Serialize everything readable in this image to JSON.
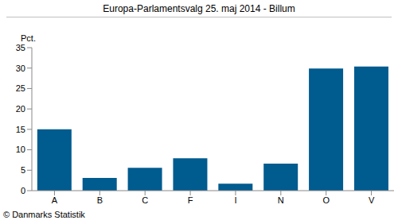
{
  "chart_data": {
    "type": "bar",
    "title": "Europa-Parlamentsvalg 25. maj 2014 - Billum",
    "y_label": "Pct.",
    "source": "© Danmarks Statistik",
    "categories": [
      "A",
      "B",
      "C",
      "F",
      "I",
      "N",
      "O",
      "V"
    ],
    "values": [
      15.0,
      3.1,
      5.6,
      7.9,
      1.7,
      6.6,
      29.9,
      30.4
    ],
    "color": "#005b8f",
    "ylim": [
      0,
      35
    ],
    "yticks": [
      0,
      5,
      10,
      15,
      20,
      25,
      30,
      35
    ],
    "grid": false
  }
}
